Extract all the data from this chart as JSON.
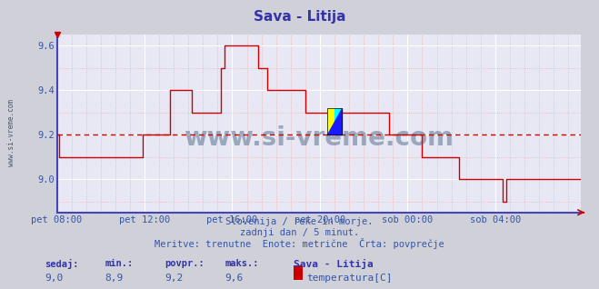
{
  "title": "Sava - Litija",
  "title_color": "#3333aa",
  "bg_color": "#d0d0d8",
  "plot_bg_color": "#e8e8f4",
  "grid_major_color": "#ffffff",
  "grid_minor_color": "#f0b0b0",
  "left_spine_color": "#4444bb",
  "bottom_spine_color": "#4444bb",
  "line_color": "#cc0000",
  "avg_line_color": "#cc0000",
  "avg_value": 9.2,
  "ylim_min": 8.85,
  "ylim_max": 9.65,
  "yticks": [
    9.0,
    9.2,
    9.4,
    9.6
  ],
  "x_labels": [
    "pet 08:00",
    "pet 12:00",
    "pet 16:00",
    "pet 20:00",
    "sob 00:00",
    "sob 04:00"
  ],
  "x_tick_positions": [
    0,
    48,
    96,
    144,
    192,
    240
  ],
  "total_points": 288,
  "subtitle1": "Slovenija / reke in morje.",
  "subtitle2": "zadnji dan / 5 minut.",
  "subtitle3": "Meritve: trenutne  Enote: metrične  Črta: povprečje",
  "footer_labels": [
    "sedaj:",
    "min.:",
    "povpr.:",
    "maks.:"
  ],
  "footer_values": [
    "9,0",
    "8,9",
    "9,2",
    "9,6"
  ],
  "footer_series": "Sava - Litija",
  "footer_measure": "temperatura[C]",
  "legend_color": "#cc0000",
  "watermark": "www.si-vreme.com",
  "watermark_color": "#3a5a7a",
  "side_text": "www.si-vreme.com",
  "text_color": "#3355aa",
  "marker_x": 152,
  "temperature_data": [
    9.2,
    9.1,
    9.1,
    9.1,
    9.1,
    9.1,
    9.1,
    9.1,
    9.1,
    9.1,
    9.1,
    9.1,
    9.1,
    9.1,
    9.1,
    9.1,
    9.1,
    9.1,
    9.1,
    9.1,
    9.1,
    9.1,
    9.1,
    9.1,
    9.1,
    9.1,
    9.1,
    9.1,
    9.1,
    9.1,
    9.1,
    9.1,
    9.1,
    9.1,
    9.1,
    9.1,
    9.1,
    9.1,
    9.1,
    9.1,
    9.1,
    9.1,
    9.1,
    9.1,
    9.1,
    9.1,
    9.1,
    9.2,
    9.2,
    9.2,
    9.2,
    9.2,
    9.2,
    9.2,
    9.2,
    9.2,
    9.2,
    9.2,
    9.2,
    9.2,
    9.2,
    9.2,
    9.4,
    9.4,
    9.4,
    9.4,
    9.4,
    9.4,
    9.4,
    9.4,
    9.4,
    9.4,
    9.4,
    9.4,
    9.3,
    9.3,
    9.3,
    9.3,
    9.3,
    9.3,
    9.3,
    9.3,
    9.3,
    9.3,
    9.3,
    9.3,
    9.3,
    9.3,
    9.3,
    9.3,
    9.5,
    9.5,
    9.6,
    9.6,
    9.6,
    9.6,
    9.6,
    9.6,
    9.6,
    9.6,
    9.6,
    9.6,
    9.6,
    9.6,
    9.6,
    9.6,
    9.6,
    9.6,
    9.6,
    9.6,
    9.5,
    9.5,
    9.5,
    9.5,
    9.5,
    9.4,
    9.4,
    9.4,
    9.4,
    9.4,
    9.4,
    9.4,
    9.4,
    9.4,
    9.4,
    9.4,
    9.4,
    9.4,
    9.4,
    9.4,
    9.4,
    9.4,
    9.4,
    9.4,
    9.4,
    9.4,
    9.3,
    9.3,
    9.3,
    9.3,
    9.3,
    9.3,
    9.3,
    9.3,
    9.3,
    9.3,
    9.3,
    9.3,
    9.3,
    9.3,
    9.3,
    9.3,
    9.3,
    9.3,
    9.3,
    9.3,
    9.3,
    9.3,
    9.3,
    9.3,
    9.3,
    9.3,
    9.3,
    9.3,
    9.3,
    9.3,
    9.3,
    9.3,
    9.3,
    9.3,
    9.3,
    9.3,
    9.3,
    9.3,
    9.3,
    9.3,
    9.3,
    9.3,
    9.3,
    9.3,
    9.3,
    9.3,
    9.2,
    9.2,
    9.2,
    9.2,
    9.2,
    9.2,
    9.2,
    9.2,
    9.2,
    9.2,
    9.2,
    9.2,
    9.2,
    9.2,
    9.2,
    9.2,
    9.2,
    9.2,
    9.1,
    9.1,
    9.1,
    9.1,
    9.1,
    9.1,
    9.1,
    9.1,
    9.1,
    9.1,
    9.1,
    9.1,
    9.1,
    9.1,
    9.1,
    9.1,
    9.1,
    9.1,
    9.1,
    9.1,
    9.0,
    9.0,
    9.0,
    9.0,
    9.0,
    9.0,
    9.0,
    9.0,
    9.0,
    9.0,
    9.0,
    9.0,
    9.0,
    9.0,
    9.0,
    9.0,
    9.0,
    9.0,
    9.0,
    9.0,
    9.0,
    9.0,
    9.0,
    9.0,
    8.9,
    8.9,
    9.0,
    9.0,
    9.0,
    9.0,
    9.0,
    9.0,
    9.0,
    9.0,
    9.0,
    9.0,
    9.0,
    9.0,
    9.0,
    9.0,
    9.0,
    9.0,
    9.0,
    9.0,
    9.0,
    9.0,
    9.0,
    9.0,
    9.0,
    9.0,
    9.0,
    9.0,
    9.0,
    9.0,
    9.0,
    9.0,
    9.0,
    9.0,
    9.0,
    9.0,
    9.0,
    9.0,
    9.0,
    9.0,
    9.0,
    9.0,
    9.0,
    9.0
  ]
}
